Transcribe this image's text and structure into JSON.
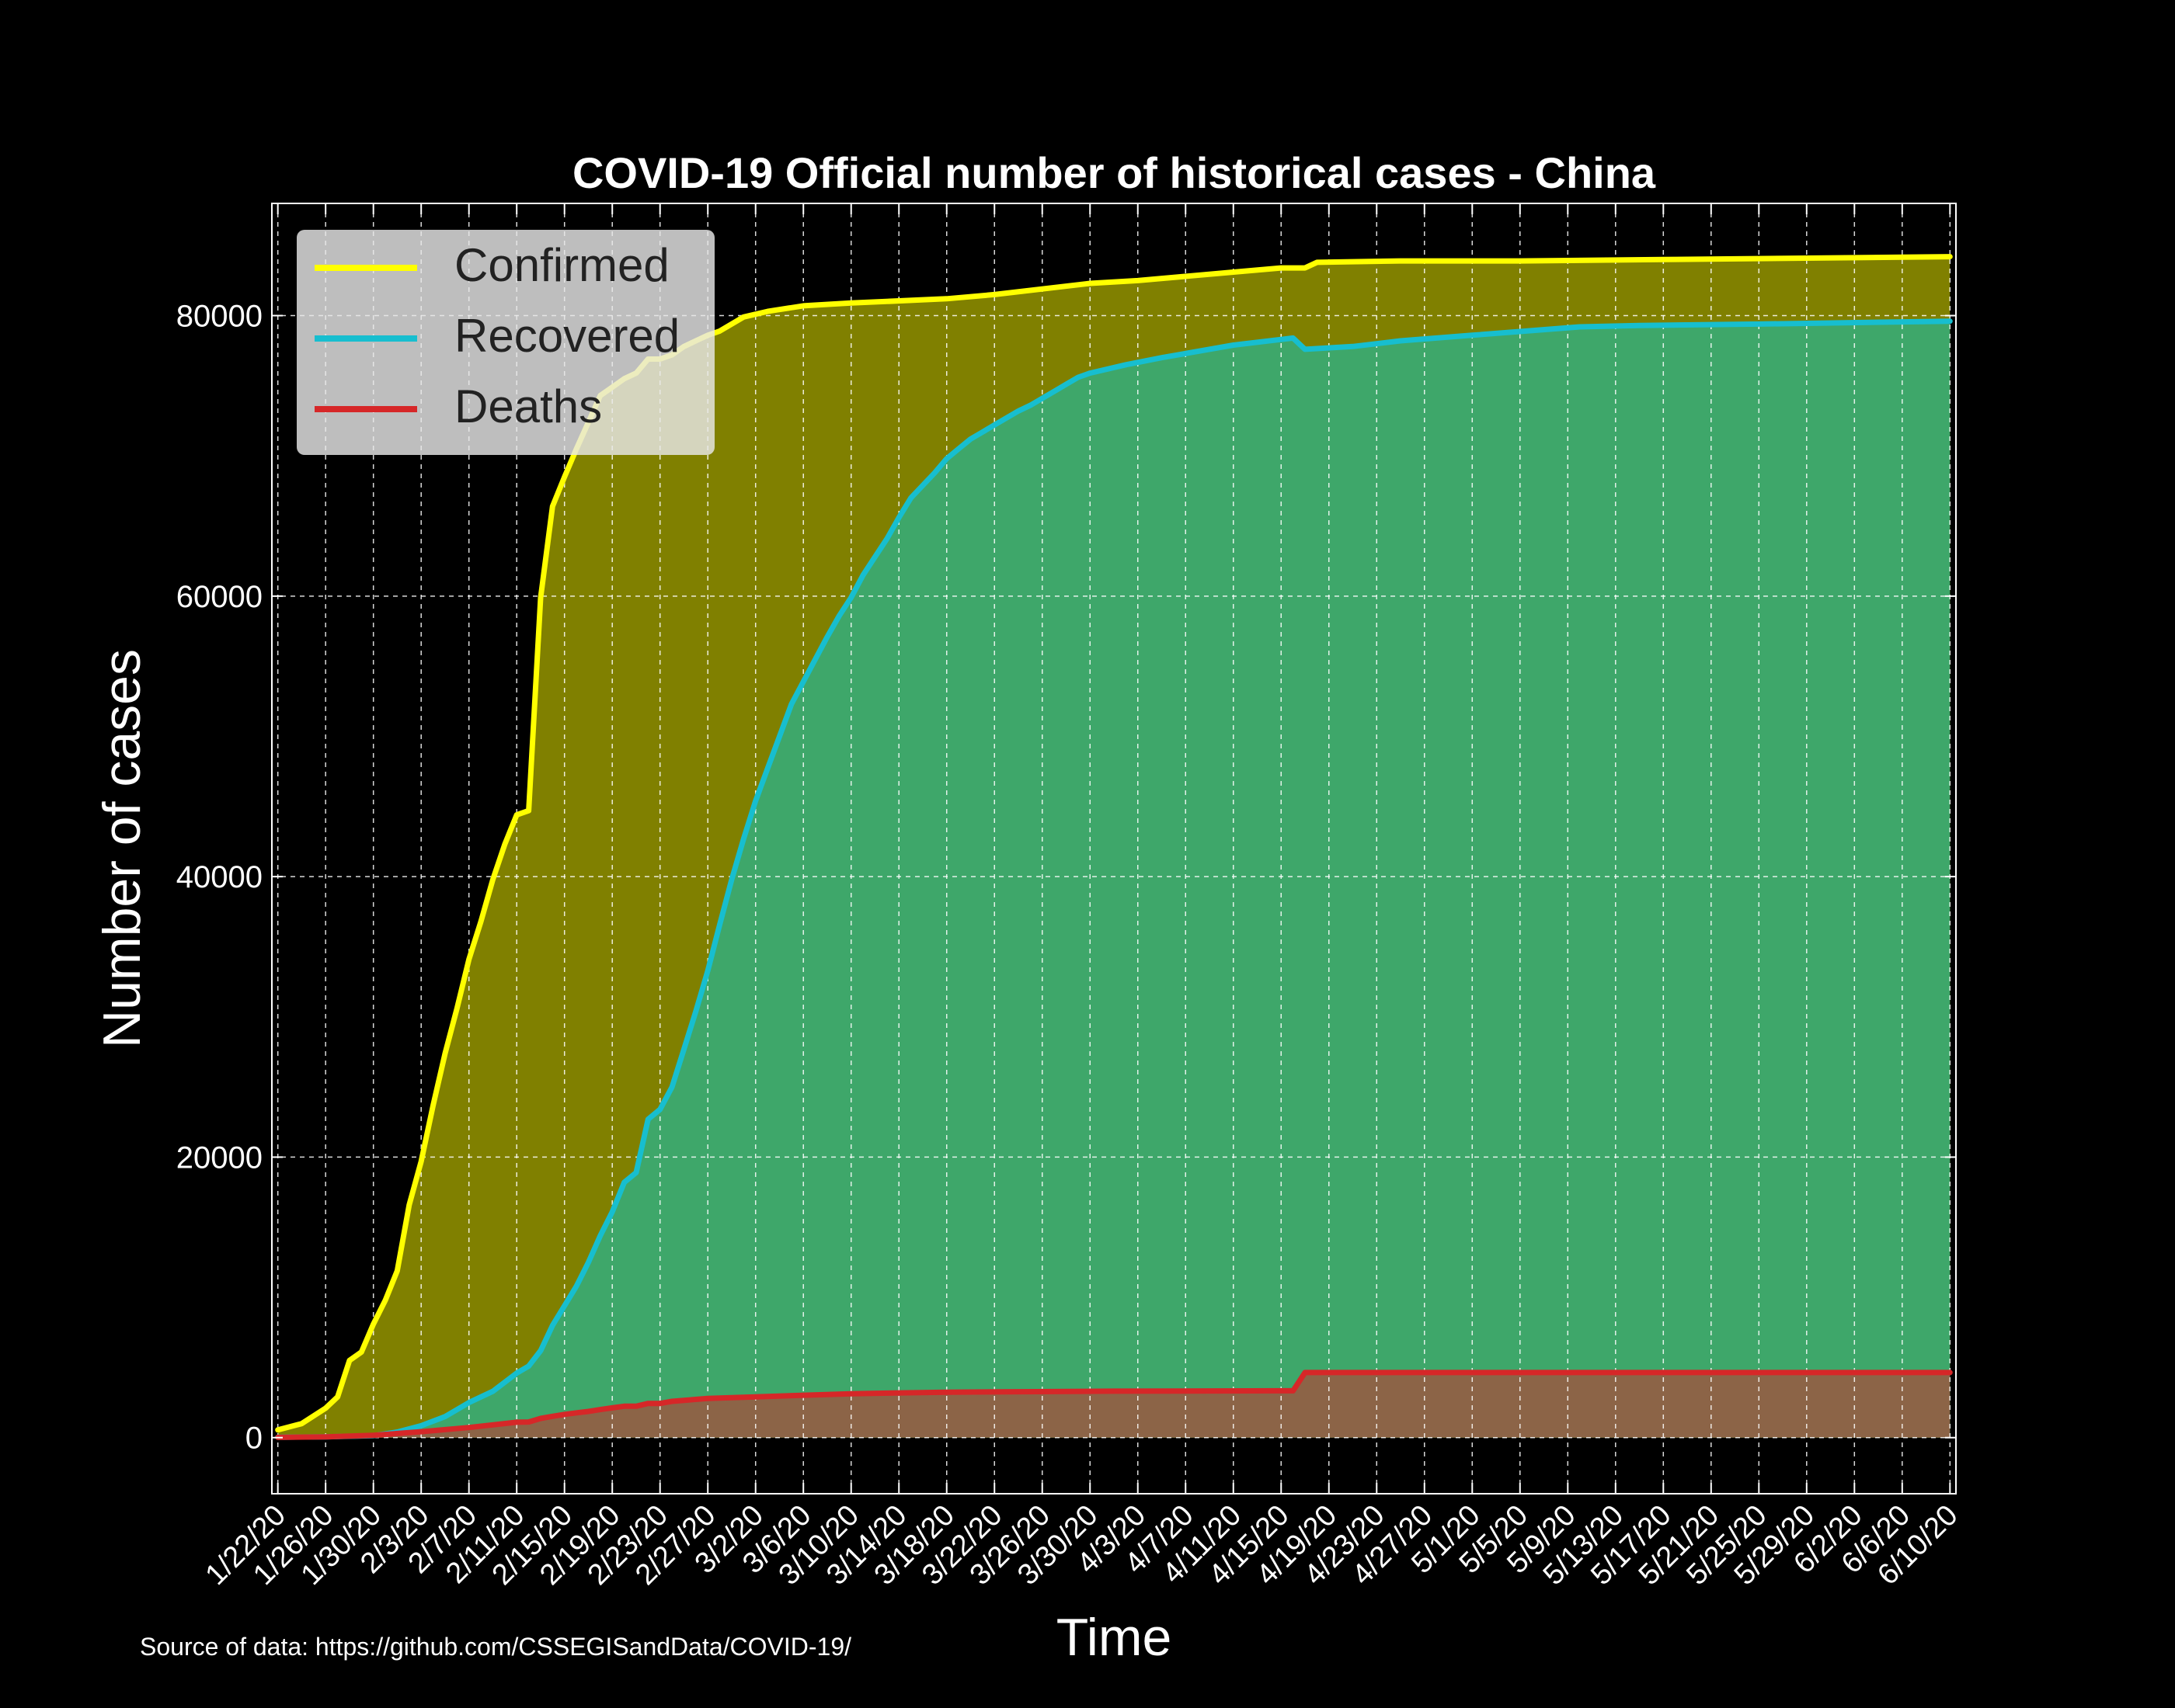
{
  "chart_data": {
    "type": "area",
    "title": "COVID-19 Official number of historical cases - China",
    "xlabel": "Time",
    "ylabel": "Number of cases",
    "ylim": [
      -4000,
      88000
    ],
    "yticks": [
      0,
      20000,
      40000,
      60000,
      80000
    ],
    "grid": true,
    "legend_position": "top-left",
    "start_date": "2020-01-22",
    "end_date": "2020-06-10",
    "xtick_labels": [
      "1/22/20",
      "1/26/20",
      "1/30/20",
      "2/3/20",
      "2/7/20",
      "2/11/20",
      "2/15/20",
      "2/19/20",
      "2/23/20",
      "2/27/20",
      "3/2/20",
      "3/6/20",
      "3/10/20",
      "3/14/20",
      "3/18/20",
      "3/22/20",
      "3/26/20",
      "3/30/20",
      "4/3/20",
      "4/7/20",
      "4/11/20",
      "4/15/20",
      "4/19/20",
      "4/23/20",
      "4/27/20",
      "5/1/20",
      "5/5/20",
      "5/9/20",
      "5/13/20",
      "5/17/20",
      "5/21/20",
      "5/25/20",
      "5/29/20",
      "6/2/20",
      "6/6/20",
      "6/10/20"
    ],
    "series": [
      {
        "name": "Confirmed",
        "color": "#ffff00",
        "fill": "#808000",
        "points": [
          [
            "1/22/20",
            548
          ],
          [
            "1/24/20",
            1000
          ],
          [
            "1/26/20",
            2100
          ],
          [
            "1/27/20",
            2900
          ],
          [
            "1/28/20",
            5500
          ],
          [
            "1/29/20",
            6100
          ],
          [
            "1/30/20",
            8100
          ],
          [
            "1/31/20",
            9800
          ],
          [
            "2/1/20",
            11900
          ],
          [
            "2/2/20",
            16600
          ],
          [
            "2/3/20",
            19700
          ],
          [
            "2/4/20",
            23700
          ],
          [
            "2/5/20",
            27400
          ],
          [
            "2/6/20",
            30600
          ],
          [
            "2/7/20",
            34100
          ],
          [
            "2/8/20",
            36800
          ],
          [
            "2/9/20",
            39800
          ],
          [
            "2/10/20",
            42300
          ],
          [
            "2/11/20",
            44400
          ],
          [
            "2/12/20",
            44700
          ],
          [
            "2/13/20",
            59900
          ],
          [
            "2/14/20",
            66400
          ],
          [
            "2/15/20",
            68500
          ],
          [
            "2/16/20",
            70500
          ],
          [
            "2/17/20",
            72400
          ],
          [
            "2/18/20",
            74300
          ],
          [
            "2/19/20",
            74900
          ],
          [
            "2/20/20",
            75500
          ],
          [
            "2/21/20",
            75900
          ],
          [
            "2/22/20",
            76900
          ],
          [
            "2/23/20",
            76900
          ],
          [
            "2/24/20",
            77200
          ],
          [
            "2/25/20",
            77800
          ],
          [
            "2/26/20",
            78200
          ],
          [
            "2/27/20",
            78600
          ],
          [
            "2/28/20",
            78900
          ],
          [
            "3/1/20",
            79900
          ],
          [
            "3/3/20",
            80300
          ],
          [
            "3/6/20",
            80700
          ],
          [
            "3/10/20",
            80900
          ],
          [
            "3/18/20",
            81200
          ],
          [
            "3/22/20",
            81500
          ],
          [
            "3/30/20",
            82300
          ],
          [
            "4/3/20",
            82500
          ],
          [
            "4/11/20",
            83100
          ],
          [
            "4/15/20",
            83400
          ],
          [
            "4/17/20",
            83400
          ],
          [
            "4/18/20",
            83800
          ],
          [
            "4/25/20",
            83900
          ],
          [
            "5/5/20",
            83900
          ],
          [
            "5/17/20",
            84000
          ],
          [
            "6/10/20",
            84200
          ]
        ]
      },
      {
        "name": "Recovered",
        "color": "#17becf",
        "fill": "#3ea76a",
        "points": [
          [
            "1/22/20",
            28
          ],
          [
            "1/26/20",
            50
          ],
          [
            "1/30/20",
            140
          ],
          [
            "2/1/20",
            400
          ],
          [
            "2/3/20",
            850
          ],
          [
            "2/5/20",
            1500
          ],
          [
            "2/7/20",
            2500
          ],
          [
            "2/9/20",
            3300
          ],
          [
            "2/11/20",
            4600
          ],
          [
            "2/12/20",
            5100
          ],
          [
            "2/13/20",
            6200
          ],
          [
            "2/14/20",
            8000
          ],
          [
            "2/15/20",
            9400
          ],
          [
            "2/16/20",
            10800
          ],
          [
            "2/17/20",
            12500
          ],
          [
            "2/18/20",
            14400
          ],
          [
            "2/19/20",
            16100
          ],
          [
            "2/20/20",
            18200
          ],
          [
            "2/21/20",
            18900
          ],
          [
            "2/22/20",
            22700
          ],
          [
            "2/23/20",
            23400
          ],
          [
            "2/24/20",
            25000
          ],
          [
            "2/25/20",
            27700
          ],
          [
            "2/26/20",
            30400
          ],
          [
            "2/27/20",
            33300
          ],
          [
            "2/28/20",
            36600
          ],
          [
            "2/29/20",
            39800
          ],
          [
            "3/1/20",
            42700
          ],
          [
            "3/2/20",
            45400
          ],
          [
            "3/3/20",
            47700
          ],
          [
            "3/4/20",
            50000
          ],
          [
            "3/5/20",
            52300
          ],
          [
            "3/6/20",
            53900
          ],
          [
            "3/7/20",
            55500
          ],
          [
            "3/8/20",
            57100
          ],
          [
            "3/9/20",
            58600
          ],
          [
            "3/10/20",
            59900
          ],
          [
            "3/11/20",
            61500
          ],
          [
            "3/12/20",
            62800
          ],
          [
            "3/13/20",
            64100
          ],
          [
            "3/14/20",
            65600
          ],
          [
            "3/15/20",
            67000
          ],
          [
            "3/16/20",
            67900
          ],
          [
            "3/17/20",
            68800
          ],
          [
            "3/18/20",
            69800
          ],
          [
            "3/19/20",
            70500
          ],
          [
            "3/20/20",
            71200
          ],
          [
            "3/21/20",
            71700
          ],
          [
            "3/22/20",
            72200
          ],
          [
            "3/23/20",
            72700
          ],
          [
            "3/24/20",
            73200
          ],
          [
            "3/25/20",
            73600
          ],
          [
            "3/26/20",
            74100
          ],
          [
            "3/27/20",
            74600
          ],
          [
            "3/28/20",
            75100
          ],
          [
            "3/29/20",
            75600
          ],
          [
            "3/30/20",
            75900
          ],
          [
            "4/2/20",
            76500
          ],
          [
            "4/5/20",
            77000
          ],
          [
            "4/11/20",
            77900
          ],
          [
            "4/15/20",
            78300
          ],
          [
            "4/16/20",
            78400
          ],
          [
            "4/17/20",
            77600
          ],
          [
            "4/21/20",
            77800
          ],
          [
            "4/25/20",
            78200
          ],
          [
            "5/1/20",
            78600
          ],
          [
            "5/10/20",
            79200
          ],
          [
            "5/15/20",
            79300
          ],
          [
            "5/25/20",
            79400
          ],
          [
            "6/10/20",
            79600
          ]
        ]
      },
      {
        "name": "Deaths",
        "color": "#d62728",
        "fill": "#8c6447",
        "points": [
          [
            "1/22/20",
            17
          ],
          [
            "1/26/20",
            56
          ],
          [
            "1/30/20",
            170
          ],
          [
            "2/3/20",
            425
          ],
          [
            "2/7/20",
            720
          ],
          [
            "2/11/20",
            1100
          ],
          [
            "2/12/20",
            1115
          ],
          [
            "2/13/20",
            1370
          ],
          [
            "2/14/20",
            1520
          ],
          [
            "2/15/20",
            1660
          ],
          [
            "2/16/20",
            1770
          ],
          [
            "2/17/20",
            1870
          ],
          [
            "2/18/20",
            2000
          ],
          [
            "2/19/20",
            2120
          ],
          [
            "2/20/20",
            2240
          ],
          [
            "2/21/20",
            2240
          ],
          [
            "2/22/20",
            2440
          ],
          [
            "2/23/20",
            2440
          ],
          [
            "2/24/20",
            2590
          ],
          [
            "2/25/20",
            2660
          ],
          [
            "2/27/20",
            2790
          ],
          [
            "3/2/20",
            2910
          ],
          [
            "3/10/20",
            3130
          ],
          [
            "3/18/20",
            3240
          ],
          [
            "4/1/20",
            3310
          ],
          [
            "4/16/20",
            3340
          ],
          [
            "4/17/20",
            4640
          ],
          [
            "5/1/20",
            4640
          ],
          [
            "6/10/20",
            4640
          ]
        ]
      }
    ],
    "source_note": "Source of data: https://github.com/CSSEGISandData/COVID-19/"
  }
}
